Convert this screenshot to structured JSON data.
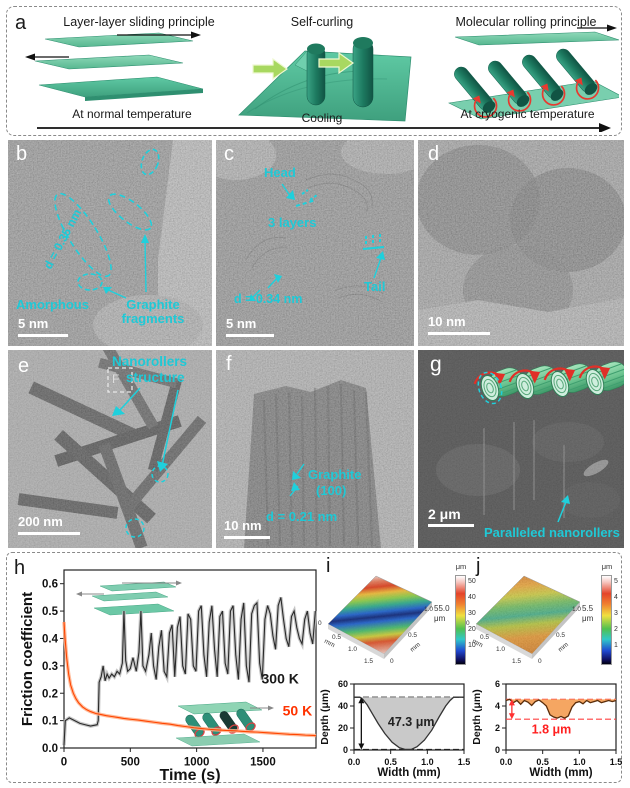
{
  "figure": {
    "panel_a": {
      "label": "a",
      "sections": [
        {
          "title": "Layer-layer sliding principle",
          "caption": "At normal temperature"
        },
        {
          "title": "Self-curling",
          "caption": "Cooling"
        },
        {
          "title": "Molecular rolling principle",
          "caption": "At cryogenic temperature"
        }
      ]
    },
    "panel_b": {
      "label": "b",
      "d_spacing": "d = 0.35 nm",
      "amorphous": "Amorphous",
      "fragments_line1": "Graphite",
      "fragments_line2": "fragments",
      "scale_bar": "5 nm"
    },
    "panel_c": {
      "label": "c",
      "head": "Head",
      "layers": "3 layers",
      "d_spacing": "d = 0.34 nm",
      "tail": "Tail",
      "scale_bar": "5 nm"
    },
    "panel_d": {
      "label": "d",
      "scale_bar": "10 nm"
    },
    "panel_e": {
      "label": "e",
      "annotation_line1": "Nanorollers",
      "annotation_line2": "structure",
      "box_label": "F",
      "scale_bar": "200 nm"
    },
    "panel_f": {
      "label": "f",
      "graphite": "Graphite",
      "plane": "(100)",
      "d_spacing": "d = 0.21 nm",
      "scale_bar": "10 nm"
    },
    "panel_g": {
      "label": "g",
      "annotation": "Paralleled nanorollers",
      "scale_bar": "2 μm"
    },
    "panel_h": {
      "label": "h"
    },
    "panel_i": {
      "label": "i",
      "peak_value": "55.0",
      "peak_unit": "μm",
      "colorbar_unit": "μm",
      "colorbar_ticks": [
        "50",
        "40",
        "30",
        "20",
        "10"
      ],
      "axis_left_ticks": [
        "0",
        "0.5",
        "1.0",
        "1.5"
      ],
      "axis_right_ticks": [
        "1.0",
        "0.5",
        "0"
      ],
      "axis_unit": "mm"
    },
    "panel_j": {
      "label": "j",
      "peak_value": "5.5",
      "peak_unit": "μm",
      "colorbar_unit": "μm",
      "colorbar_ticks": [
        "5",
        "4",
        "3",
        "2",
        "1"
      ],
      "axis_left_ticks": [
        "0",
        "0.5",
        "1.0",
        "1.5"
      ],
      "axis_right_ticks": [
        "1.0",
        "0.5",
        "0"
      ],
      "axis_unit": "mm"
    }
  },
  "colors": {
    "annotation_cyan": "#1fc9d6",
    "teal_sheet": "#4dbd97",
    "series_300K": "#2a2a2a",
    "series_50K": "#ff4500",
    "red_rolling_arrow": "#e8392f",
    "profile_gray_fill": "#c9c9c9",
    "profile_orange_fill": "#f5a662",
    "red_dashed": "#ff4040"
  },
  "chart_data": [
    {
      "id": "friction_vs_time",
      "type": "line",
      "xlabel": "Time (s)",
      "ylabel": "Friction coefficient",
      "xlim": [
        0,
        1900
      ],
      "ylim": [
        0,
        0.65
      ],
      "xticks": [
        0,
        500,
        1000,
        1500
      ],
      "xtick_labels": [
        "0",
        "500",
        "1000",
        "1500"
      ],
      "yticks": [
        0,
        0.1,
        0.2,
        0.3,
        0.4,
        0.5,
        0.6
      ],
      "ytick_labels": [
        "0.0",
        "0.1",
        "0.2",
        "0.3",
        "0.4",
        "0.5",
        "0.6"
      ],
      "legend_position": "inline-right",
      "grid": false,
      "series": [
        {
          "name": "300 K",
          "color": "#2a2a2a",
          "band_color": "#bdbdbd",
          "x": [
            0,
            10,
            40,
            80,
            120,
            160,
            200,
            250,
            258,
            265,
            280,
            295,
            310,
            325,
            340,
            360,
            380,
            400,
            420,
            440,
            452,
            465,
            480,
            500,
            520,
            545,
            565,
            580,
            595,
            615,
            640,
            658,
            675,
            695,
            715,
            735,
            755,
            775,
            795,
            815,
            835,
            855,
            875,
            895,
            915,
            935,
            955,
            975,
            995,
            1015,
            1035,
            1055,
            1075,
            1095,
            1115,
            1135,
            1155,
            1175,
            1195,
            1215,
            1235,
            1255,
            1275,
            1295,
            1315,
            1335,
            1355,
            1375,
            1395,
            1415,
            1435,
            1455,
            1475,
            1495,
            1515,
            1535,
            1555,
            1575,
            1595,
            1615,
            1635,
            1655,
            1675,
            1695,
            1715,
            1735,
            1755,
            1775,
            1795,
            1815,
            1835,
            1855,
            1875,
            1895
          ],
          "y": [
            0.01,
            0.1,
            0.11,
            0.1,
            0.09,
            0.085,
            0.08,
            0.085,
            0.1,
            0.24,
            0.26,
            0.3,
            0.245,
            0.27,
            0.255,
            0.27,
            0.26,
            0.28,
            0.27,
            0.31,
            0.5,
            0.32,
            0.28,
            0.29,
            0.33,
            0.28,
            0.35,
            0.5,
            0.3,
            0.28,
            0.34,
            0.42,
            0.3,
            0.25,
            0.37,
            0.43,
            0.28,
            0.26,
            0.42,
            0.45,
            0.26,
            0.44,
            0.48,
            0.3,
            0.27,
            0.49,
            0.47,
            0.3,
            0.28,
            0.5,
            0.52,
            0.34,
            0.26,
            0.46,
            0.52,
            0.36,
            0.26,
            0.48,
            0.5,
            0.31,
            0.27,
            0.5,
            0.52,
            0.34,
            0.25,
            0.47,
            0.53,
            0.3,
            0.24,
            0.49,
            0.52,
            0.53,
            0.31,
            0.25,
            0.47,
            0.52,
            0.49,
            0.41,
            0.36,
            0.52,
            0.55,
            0.47,
            0.4,
            0.37,
            0.48,
            0.5,
            0.44,
            0.4,
            0.38,
            0.47,
            0.5,
            0.42,
            0.38,
            0.5
          ]
        },
        {
          "name": "50 K",
          "color": "#ff4500",
          "band_color": "#ffb08a",
          "x": [
            0,
            8,
            20,
            35,
            50,
            70,
            90,
            110,
            140,
            170,
            200,
            240,
            280,
            320,
            360,
            400,
            450,
            500,
            560,
            620,
            680,
            740,
            800,
            860,
            920,
            980,
            1040,
            1100,
            1160,
            1220,
            1280,
            1340,
            1400,
            1460,
            1520,
            1580,
            1640,
            1700,
            1760,
            1820,
            1880,
            1900
          ],
          "y": [
            0.46,
            0.4,
            0.33,
            0.27,
            0.23,
            0.2,
            0.18,
            0.165,
            0.15,
            0.14,
            0.133,
            0.126,
            0.122,
            0.118,
            0.115,
            0.112,
            0.108,
            0.105,
            0.102,
            0.098,
            0.094,
            0.09,
            0.087,
            0.082,
            0.078,
            0.074,
            0.071,
            0.068,
            0.066,
            0.064,
            0.063,
            0.061,
            0.059,
            0.058,
            0.056,
            0.054,
            0.052,
            0.05,
            0.049,
            0.047,
            0.046,
            0.045
          ]
        }
      ],
      "annotations": [
        {
          "x": 1630,
          "y": 0.235,
          "text": "300 K",
          "color": "#1a1a1a",
          "size": 14,
          "weight": "bold"
        },
        {
          "x": 1760,
          "y": 0.118,
          "text": "50 K",
          "color": "#ff3300",
          "size": 14,
          "weight": "bold"
        }
      ]
    },
    {
      "id": "wear_profile_300K",
      "type": "area",
      "xlabel": "Width (mm)",
      "ylabel": "Depth (μm)",
      "xlim": [
        0,
        1.5
      ],
      "ylim": [
        0,
        60
      ],
      "xticks": [
        0,
        0.5,
        1,
        1.5
      ],
      "xtick_labels": [
        "0.0",
        "0.5",
        "1.0",
        "1.5"
      ],
      "yticks": [
        0,
        20,
        40,
        60
      ],
      "ytick_labels": [
        "0",
        "20",
        "40",
        "60"
      ],
      "area": {
        "fill": "#c9c9c9",
        "line_color": "#333333",
        "top": 48,
        "x": [
          0,
          0.08,
          0.12,
          0.18,
          0.25,
          0.33,
          0.42,
          0.52,
          0.62,
          0.7,
          0.78,
          0.86,
          0.96,
          1.06,
          1.16,
          1.25,
          1.31,
          1.36,
          1.42,
          1.5
        ],
        "y": [
          48,
          48,
          46,
          41,
          33,
          24,
          15,
          7,
          2,
          0.5,
          0.5,
          3,
          9,
          18,
          30,
          40,
          45,
          48,
          48,
          48
        ]
      },
      "ref_lines": [
        {
          "y": 48,
          "color": "#222222"
        },
        {
          "y": 0.5,
          "color": "#222222"
        }
      ],
      "arrows": [
        {
          "x": 0.1,
          "y1": 0.5,
          "y2": 48,
          "color": "#111111"
        }
      ],
      "annotations": [
        {
          "x": 0.78,
          "y": 22,
          "text": "47.3 μm",
          "color": "#222222",
          "size": 12.5,
          "weight": "bold"
        }
      ],
      "wear_depth": "47.3 μm"
    },
    {
      "id": "wear_profile_50K",
      "type": "area",
      "xlabel": "Width (mm)",
      "ylabel": "Depth (μm)",
      "xlim": [
        0,
        1.5
      ],
      "ylim": [
        0,
        6
      ],
      "xticks": [
        0,
        0.5,
        1,
        1.5
      ],
      "xtick_labels": [
        "0.0",
        "0.5",
        "1.0",
        "1.5"
      ],
      "yticks": [
        0,
        2,
        4,
        6
      ],
      "ytick_labels": [
        "0",
        "2",
        "4",
        "6"
      ],
      "area": {
        "fill": "#f5a662",
        "line_color": "#5a2d0a",
        "top": 4.6,
        "x": [
          0,
          0.05,
          0.1,
          0.15,
          0.2,
          0.25,
          0.3,
          0.35,
          0.4,
          0.45,
          0.5,
          0.55,
          0.6,
          0.65,
          0.7,
          0.75,
          0.8,
          0.85,
          0.9,
          0.95,
          1,
          1.05,
          1.1,
          1.15,
          1.2,
          1.25,
          1.3,
          1.35,
          1.4,
          1.45,
          1.5
        ],
        "y": [
          4.5,
          4.6,
          4.3,
          4.5,
          4.15,
          4.5,
          4.35,
          4.05,
          4.4,
          4.55,
          4.3,
          4.0,
          3.2,
          3.0,
          2.9,
          3.05,
          2.9,
          3.1,
          3.9,
          4.3,
          4.4,
          4.2,
          4.5,
          4.3,
          4.4,
          4.5,
          4.3,
          4.4,
          4.5,
          4.4,
          4.5
        ]
      },
      "ref_lines": [
        {
          "y": 4.6,
          "color": "#ff4040"
        },
        {
          "y": 2.8,
          "color": "#ff4040"
        }
      ],
      "arrows": [
        {
          "x": 0.08,
          "y1": 2.8,
          "y2": 4.6,
          "color": "#ff3030"
        }
      ],
      "annotations": [
        {
          "x": 0.62,
          "y": 1.5,
          "text": "1.8 μm",
          "color": "#ff2020",
          "size": 12.5,
          "weight": "bold"
        }
      ],
      "wear_depth": "1.8 μm"
    },
    {
      "id": "surface_topography_300K",
      "type": "heatmap",
      "style": "3d-surface",
      "x_range_mm": [
        0,
        1.5
      ],
      "y_range_mm": [
        0,
        1.0
      ],
      "z_range_um": [
        0,
        55
      ],
      "peak_label": "55.0 μm",
      "colorbar_unit": "μm",
      "colorbar_ticks": [
        50,
        40,
        30,
        20,
        10
      ],
      "description_axis_unit": "mm"
    },
    {
      "id": "surface_topography_50K",
      "type": "heatmap",
      "style": "3d-surface",
      "x_range_mm": [
        0,
        1.5
      ],
      "y_range_mm": [
        0,
        1.0
      ],
      "z_range_um": [
        0,
        5.5
      ],
      "peak_label": "5.5 μm",
      "colorbar_unit": "μm",
      "colorbar_ticks": [
        5,
        4,
        3,
        2,
        1
      ],
      "description_axis_unit": "mm"
    }
  ]
}
